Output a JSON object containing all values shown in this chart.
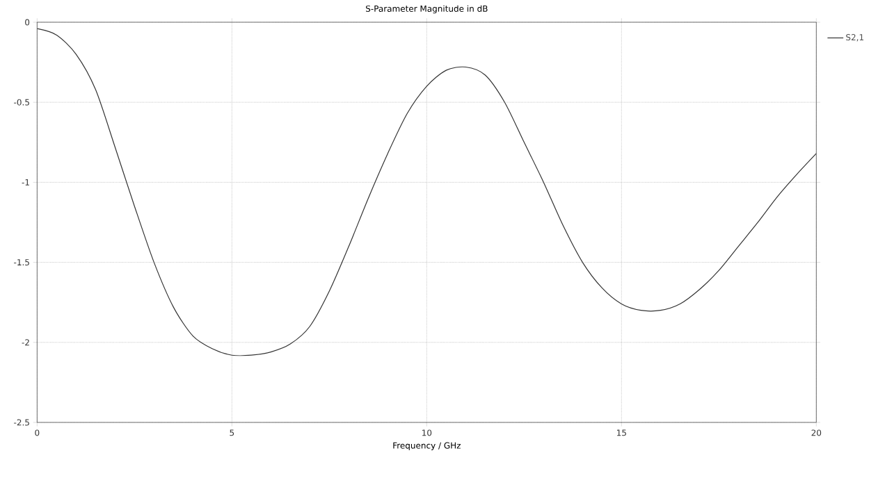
{
  "chart_data": {
    "type": "line",
    "title": "S-Parameter Magnitude in dB",
    "xlabel": "Frequency / GHz",
    "x": [
      0,
      0.5,
      1,
      1.5,
      2,
      2.5,
      3,
      3.5,
      4,
      4.5,
      5,
      5.5,
      6,
      6.5,
      7,
      7.5,
      8,
      8.5,
      9,
      9.5,
      10,
      10.5,
      11,
      11.5,
      12,
      12.5,
      13,
      13.5,
      14,
      14.5,
      15,
      15.5,
      16,
      16.5,
      17,
      17.5,
      18,
      18.5,
      19,
      19.5,
      20
    ],
    "series": [
      {
        "name": "S2,1",
        "color": "#333333",
        "values": [
          -0.04,
          -0.08,
          -0.2,
          -0.42,
          -0.78,
          -1.15,
          -1.5,
          -1.78,
          -1.96,
          -2.04,
          -2.08,
          -2.08,
          -2.06,
          -2.01,
          -1.9,
          -1.68,
          -1.4,
          -1.1,
          -0.82,
          -0.57,
          -0.4,
          -0.3,
          -0.28,
          -0.33,
          -0.5,
          -0.75,
          -1.0,
          -1.27,
          -1.5,
          -1.66,
          -1.76,
          -1.8,
          -1.8,
          -1.76,
          -1.67,
          -1.55,
          -1.4,
          -1.25,
          -1.09,
          -0.95,
          -0.82
        ]
      }
    ],
    "xlim": [
      0,
      20
    ],
    "xticks": [
      0,
      5,
      10,
      15,
      20
    ],
    "ylim": [
      -2.5,
      0
    ],
    "yticks": [
      0,
      -0.5,
      -1,
      -1.5,
      -2,
      -2.5
    ],
    "grid": true,
    "legend": "top right",
    "line_style": "solid",
    "marker": "none"
  }
}
